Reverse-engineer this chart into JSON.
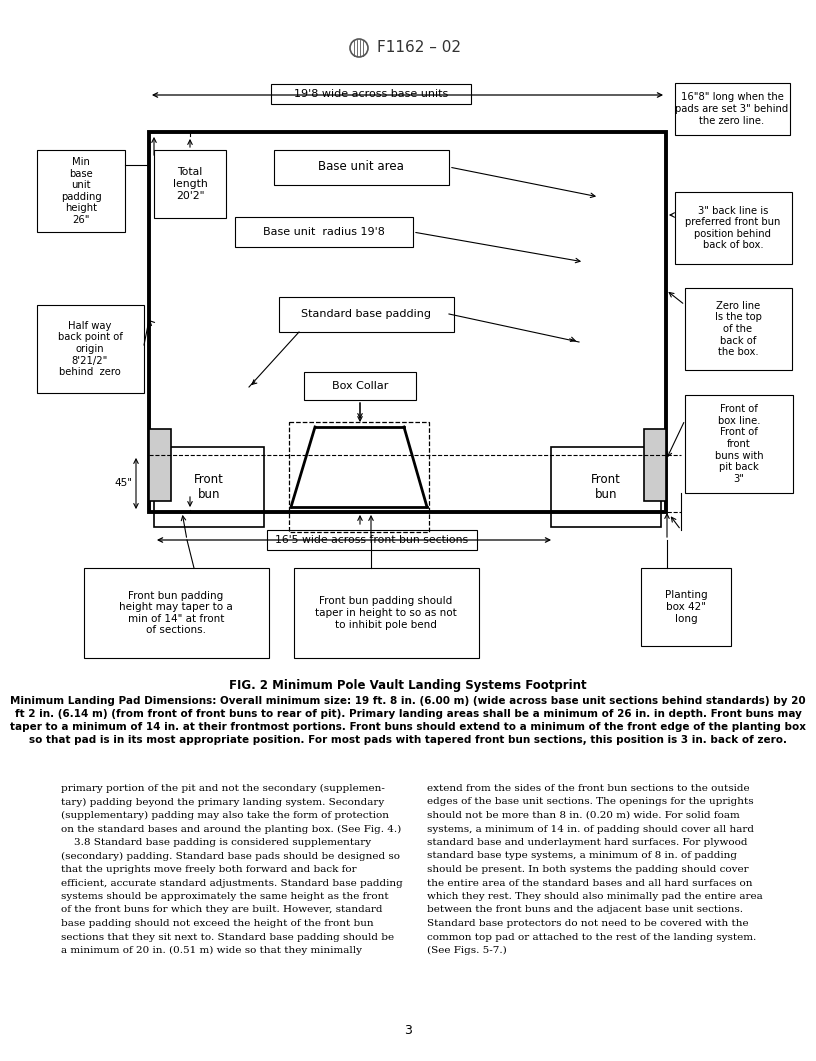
{
  "title": "F1162 – 02",
  "fig_caption": "FIG. 2 Minimum Pole Vault Landing Systems Footprint",
  "fig_desc_line1": "Minimum Landing Pad Dimensions: Overall minimum size: 19 ft. 8 in. (6.00 m) (wide across base unit sections behind standards) by 20",
  "fig_desc_line2": "ft 2 in. (6.14 m) (from front of front buns to rear of pit). Primary landing areas shall be a minimum of 26 in. in depth. Front buns may",
  "fig_desc_line3": "taper to a minimum of 14 in. at their frontmost portions. Front buns should extend to a minimum of the front edge of the planting box",
  "fig_desc_line4": "so that pad is in its most appropriate position. For most pads with tapered front bun sections, this position is 3 in. back of zero.",
  "body_left": [
    "primary portion of the pit and not the secondary (supplemen-",
    "tary) padding beyond the primary landing system. Secondary",
    "(supplementary) padding may also take the form of protection",
    "on the standard bases and around the planting box. (See Fig. 4.)",
    "    3.8 Standard base padding is considered supplementary",
    "(secondary) padding. Standard base pads should be designed so",
    "that the uprights move freely both forward and back for",
    "efficient, accurate standard adjustments. Standard base padding",
    "systems should be approximately the same height as the front",
    "of the front buns for which they are built. However, standard",
    "base padding should not exceed the height of the front bun",
    "sections that they sit next to. Standard base padding should be",
    "a minimum of 20 in. (0.51 m) wide so that they minimally"
  ],
  "body_right": [
    "extend from the sides of the front bun sections to the outside",
    "edges of the base unit sections. The openings for the uprights",
    "should not be more than 8 in. (0.20 m) wide. For solid foam",
    "systems, a minimum of 14 in. of padding should cover all hard",
    "standard base and underlayment hard surfaces. For plywood",
    "standard base type systems, a minimum of 8 in. of padding",
    "should be present. In both systems the padding should cover",
    "the entire area of the standard bases and all hard surfaces on",
    "which they rest. They should also minimally pad the entire area",
    "between the front buns and the adjacent base unit sections.",
    "Standard base protectors do not need to be covered with the",
    "common top pad or attached to the rest of the landing system.",
    "(See Figs. 5-7.)"
  ],
  "page_number": "3",
  "bg_color": "#ffffff",
  "line_color": "#000000",
  "text_color": "#000000"
}
